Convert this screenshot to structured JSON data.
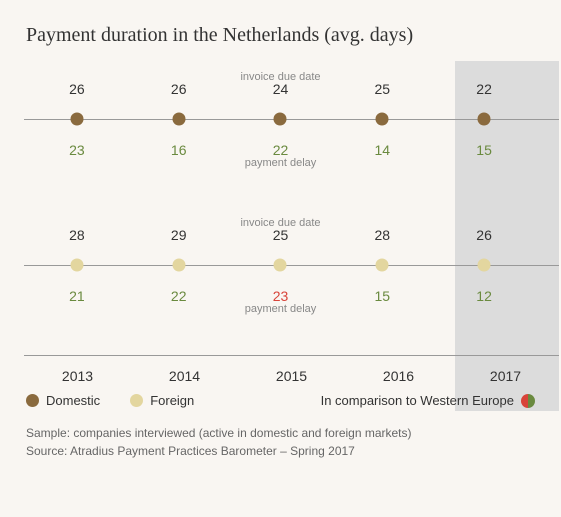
{
  "title": "Payment duration in the Netherlands (avg. days)",
  "labels": {
    "invoice_due": "invoice due date",
    "payment_delay": "payment delay"
  },
  "years": [
    "2013",
    "2014",
    "2015",
    "2016",
    "2017"
  ],
  "highlight_year_index": 4,
  "colors": {
    "domestic": "#8a6a3e",
    "foreign": "#e3d69f",
    "delay_normal": "#6a8a3f",
    "delay_bad": "#d8443a",
    "text": "#333333",
    "muted": "#888888",
    "axis": "#999999",
    "background": "#f9f6f2",
    "highlight_bg": "#dcdcdc"
  },
  "series": {
    "domestic": {
      "invoice": [
        26,
        26,
        24,
        25,
        22
      ],
      "delay": [
        23,
        16,
        22,
        14,
        15
      ],
      "delay_flags": [
        "normal",
        "normal",
        "normal",
        "normal",
        "normal"
      ]
    },
    "foreign": {
      "invoice": [
        28,
        29,
        25,
        28,
        26
      ],
      "delay": [
        21,
        22,
        23,
        15,
        12
      ],
      "delay_flags": [
        "normal",
        "normal",
        "bad",
        "normal",
        "normal"
      ]
    }
  },
  "legend": {
    "domestic": "Domestic",
    "foreign": "Foreign",
    "comparison": "In comparison to Western Europe"
  },
  "footnotes": {
    "sample": "Sample: companies interviewed (active in domestic and foreign markets)",
    "source": "Source: Atradius Payment Practices Barometer – Spring 2017"
  },
  "typography": {
    "title_fontsize": 20,
    "value_fontsize": 14,
    "label_fontsize": 11,
    "legend_fontsize": 13,
    "footnote_fontsize": 12
  }
}
